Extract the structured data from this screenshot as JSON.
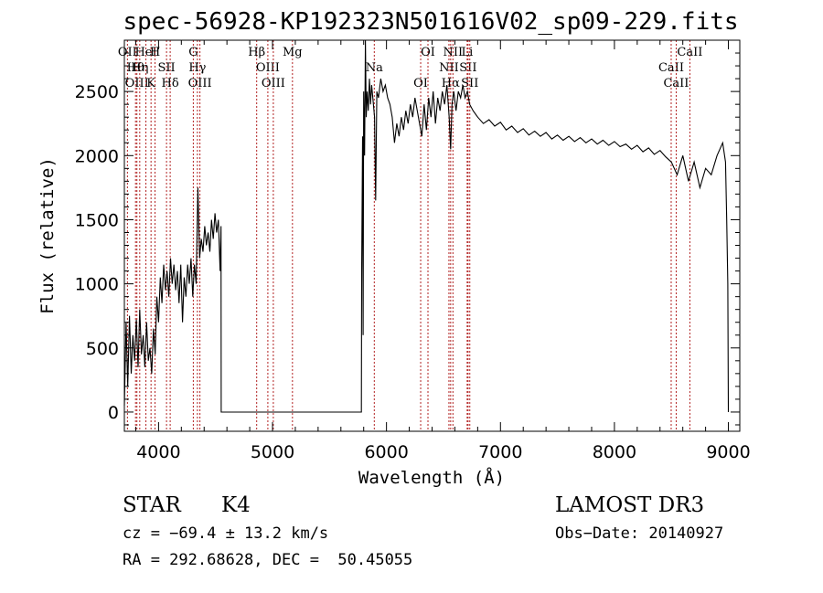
{
  "chart_data": {
    "type": "line",
    "title": "spec-56928-KP192323N501616V02_sp09-229.fits",
    "xlabel": "Wavelength (Å)",
    "ylabel": "Flux (relative)",
    "xlim": [
      3700,
      9100
    ],
    "ylim": [
      -150,
      2900
    ],
    "xticks": [
      4000,
      5000,
      6000,
      7000,
      8000,
      9000
    ],
    "yticks": [
      0,
      500,
      1000,
      1500,
      2000,
      2500
    ],
    "series": [
      {
        "name": "flux",
        "points": [
          [
            3700,
            50
          ],
          [
            3715,
            700
          ],
          [
            3730,
            200
          ],
          [
            3745,
            750
          ],
          [
            3760,
            300
          ],
          [
            3775,
            600
          ],
          [
            3790,
            400
          ],
          [
            3805,
            720
          ],
          [
            3820,
            350
          ],
          [
            3835,
            800
          ],
          [
            3850,
            450
          ],
          [
            3865,
            600
          ],
          [
            3880,
            350
          ],
          [
            3895,
            700
          ],
          [
            3910,
            400
          ],
          [
            3925,
            500
          ],
          [
            3940,
            300
          ],
          [
            3955,
            650
          ],
          [
            3970,
            450
          ],
          [
            3985,
            900
          ],
          [
            4000,
            700
          ],
          [
            4015,
            1050
          ],
          [
            4030,
            850
          ],
          [
            4045,
            1150
          ],
          [
            4060,
            950
          ],
          [
            4075,
            1100
          ],
          [
            4090,
            900
          ],
          [
            4105,
            1200
          ],
          [
            4120,
            1000
          ],
          [
            4135,
            1150
          ],
          [
            4150,
            950
          ],
          [
            4165,
            1100
          ],
          [
            4180,
            850
          ],
          [
            4195,
            1150
          ],
          [
            4210,
            700
          ],
          [
            4225,
            1050
          ],
          [
            4240,
            900
          ],
          [
            4255,
            1150
          ],
          [
            4270,
            1000
          ],
          [
            4285,
            1200
          ],
          [
            4300,
            900
          ],
          [
            4315,
            1150
          ],
          [
            4330,
            1000
          ],
          [
            4345,
            1750
          ],
          [
            4360,
            1200
          ],
          [
            4375,
            1350
          ],
          [
            4390,
            1250
          ],
          [
            4405,
            1450
          ],
          [
            4420,
            1300
          ],
          [
            4435,
            1400
          ],
          [
            4450,
            1250
          ],
          [
            4465,
            1500
          ],
          [
            4480,
            1350
          ],
          [
            4495,
            1550
          ],
          [
            4510,
            1400
          ],
          [
            4525,
            1500
          ],
          [
            4540,
            1100
          ],
          [
            4548,
            1450
          ],
          [
            4550,
            0
          ],
          [
            5780,
            0
          ],
          [
            5782,
            1100
          ],
          [
            5790,
            2150
          ],
          [
            5795,
            600
          ],
          [
            5800,
            2500
          ],
          [
            5808,
            2000
          ],
          [
            5815,
            2900
          ],
          [
            5822,
            2300
          ],
          [
            5830,
            2500
          ],
          [
            5840,
            2350
          ],
          [
            5850,
            2600
          ],
          [
            5860,
            2400
          ],
          [
            5870,
            2550
          ],
          [
            5880,
            2450
          ],
          [
            5895,
            2300
          ],
          [
            5905,
            1650
          ],
          [
            5915,
            2500
          ],
          [
            5930,
            2450
          ],
          [
            5950,
            2600
          ],
          [
            5970,
            2500
          ],
          [
            5990,
            2550
          ],
          [
            6010,
            2450
          ],
          [
            6030,
            2400
          ],
          [
            6050,
            2300
          ],
          [
            6070,
            2100
          ],
          [
            6090,
            2250
          ],
          [
            6110,
            2150
          ],
          [
            6130,
            2300
          ],
          [
            6150,
            2200
          ],
          [
            6170,
            2350
          ],
          [
            6190,
            2250
          ],
          [
            6210,
            2400
          ],
          [
            6230,
            2300
          ],
          [
            6250,
            2450
          ],
          [
            6270,
            2350
          ],
          [
            6290,
            2250
          ],
          [
            6310,
            2150
          ],
          [
            6330,
            2400
          ],
          [
            6350,
            2200
          ],
          [
            6370,
            2450
          ],
          [
            6390,
            2300
          ],
          [
            6410,
            2500
          ],
          [
            6430,
            2250
          ],
          [
            6450,
            2450
          ],
          [
            6470,
            2350
          ],
          [
            6490,
            2500
          ],
          [
            6510,
            2400
          ],
          [
            6530,
            2550
          ],
          [
            6550,
            2300
          ],
          [
            6563,
            2050
          ],
          [
            6575,
            2400
          ],
          [
            6590,
            2500
          ],
          [
            6610,
            2350
          ],
          [
            6630,
            2500
          ],
          [
            6650,
            2450
          ],
          [
            6670,
            2550
          ],
          [
            6690,
            2450
          ],
          [
            6710,
            2500
          ],
          [
            6730,
            2400
          ],
          [
            6760,
            2350
          ],
          [
            6800,
            2300
          ],
          [
            6850,
            2250
          ],
          [
            6900,
            2280
          ],
          [
            6950,
            2230
          ],
          [
            7000,
            2260
          ],
          [
            7050,
            2200
          ],
          [
            7100,
            2230
          ],
          [
            7150,
            2180
          ],
          [
            7200,
            2210
          ],
          [
            7250,
            2160
          ],
          [
            7300,
            2190
          ],
          [
            7350,
            2150
          ],
          [
            7400,
            2180
          ],
          [
            7450,
            2130
          ],
          [
            7500,
            2160
          ],
          [
            7550,
            2120
          ],
          [
            7600,
            2150
          ],
          [
            7650,
            2110
          ],
          [
            7700,
            2140
          ],
          [
            7750,
            2100
          ],
          [
            7800,
            2130
          ],
          [
            7850,
            2090
          ],
          [
            7900,
            2120
          ],
          [
            7950,
            2080
          ],
          [
            8000,
            2110
          ],
          [
            8050,
            2070
          ],
          [
            8100,
            2090
          ],
          [
            8150,
            2050
          ],
          [
            8200,
            2080
          ],
          [
            8250,
            2030
          ],
          [
            8300,
            2060
          ],
          [
            8350,
            2010
          ],
          [
            8400,
            2040
          ],
          [
            8450,
            1990
          ],
          [
            8500,
            1950
          ],
          [
            8550,
            1850
          ],
          [
            8600,
            2000
          ],
          [
            8650,
            1800
          ],
          [
            8700,
            1950
          ],
          [
            8750,
            1750
          ],
          [
            8800,
            1900
          ],
          [
            8850,
            1850
          ],
          [
            8900,
            2000
          ],
          [
            8950,
            2100
          ],
          [
            8975,
            1950
          ],
          [
            8985,
            1500
          ],
          [
            8995,
            1000
          ],
          [
            9000,
            0
          ]
        ]
      }
    ],
    "spectral_lines": [
      {
        "label": "OII",
        "x": 3727
      },
      {
        "label": "Hθ",
        "x": 3798
      },
      {
        "label": "OIII",
        "x": 3810
      },
      {
        "label": "HeI",
        "x": 3889
      },
      {
        "label": "Hη",
        "x": 3835
      },
      {
        "label": "K",
        "x": 3934
      },
      {
        "label": "H",
        "x": 3969
      },
      {
        "label": "SII",
        "x": 4070
      },
      {
        "label": "Hδ",
        "x": 4102
      },
      {
        "label": "G",
        "x": 4305
      },
      {
        "label": "Hγ",
        "x": 4341
      },
      {
        "label": "OIII",
        "x": 4363
      },
      {
        "label": "Hβ",
        "x": 4861
      },
      {
        "label": "OIII",
        "x": 4959
      },
      {
        "label": "OIII",
        "x": 5007
      },
      {
        "label": "Mg",
        "x": 5175
      },
      {
        "label": "Na",
        "x": 5893
      },
      {
        "label": "OI",
        "x": 6300
      },
      {
        "label": "OI",
        "x": 6364
      },
      {
        "label": "NII",
        "x": 6548
      },
      {
        "label": "Hα",
        "x": 6563
      },
      {
        "label": "NII",
        "x": 6583
      },
      {
        "label": "SII",
        "x": 6716
      },
      {
        "label": "SII",
        "x": 6731
      },
      {
        "label": "Li",
        "x": 6708
      },
      {
        "label": "CaII",
        "x": 8498
      },
      {
        "label": "CaII",
        "x": 8542
      },
      {
        "label": "CaII",
        "x": 8662
      }
    ]
  },
  "info": {
    "class": "STAR",
    "subclass": "K4",
    "survey": "LAMOST DR3",
    "cz": "cz = −69.4 ± 13.2 km/s",
    "obs_date": "Obs−Date: 20140927",
    "coords": "RA = 292.68628, DEC =  50.45055"
  }
}
